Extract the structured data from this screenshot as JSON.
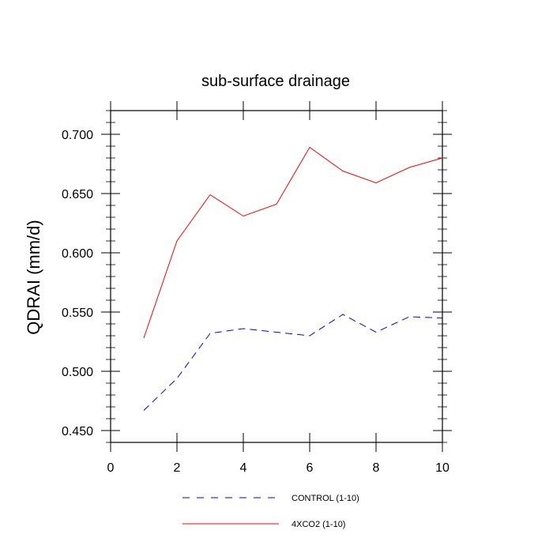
{
  "chart_data": {
    "type": "line",
    "title": "sub-surface drainage",
    "xlabel": "",
    "ylabel": "QDRAI  (mm/d)",
    "xlim": [
      0,
      10
    ],
    "ylim": [
      0.44,
      0.72
    ],
    "xticks": [
      0,
      2,
      4,
      6,
      8,
      10
    ],
    "xtick_labels": [
      "0",
      "2",
      "4",
      "6",
      "8",
      "10"
    ],
    "yticks": [
      0.45,
      0.5,
      0.55,
      0.6,
      0.65,
      0.7
    ],
    "ytick_labels": [
      "0.450",
      "0.500",
      "0.550",
      "0.600",
      "0.650",
      "0.700"
    ],
    "grid": false,
    "legend_position": "bottom-center",
    "x": [
      1,
      2,
      3,
      4,
      5,
      6,
      7,
      8,
      9,
      10
    ],
    "series": [
      {
        "name": "CONTROL (1-10)",
        "color": "#0000ff",
        "dash": "dashed",
        "values": [
          0.467,
          0.494,
          0.532,
          0.536,
          0.533,
          0.53,
          0.548,
          0.533,
          0.546,
          0.545
        ]
      },
      {
        "name": "4XCO2 (1-10)",
        "color": "#ff0000",
        "dash": "solid",
        "values": [
          0.528,
          0.61,
          0.649,
          0.631,
          0.641,
          0.689,
          0.669,
          0.659,
          0.672,
          0.68
        ]
      }
    ]
  }
}
